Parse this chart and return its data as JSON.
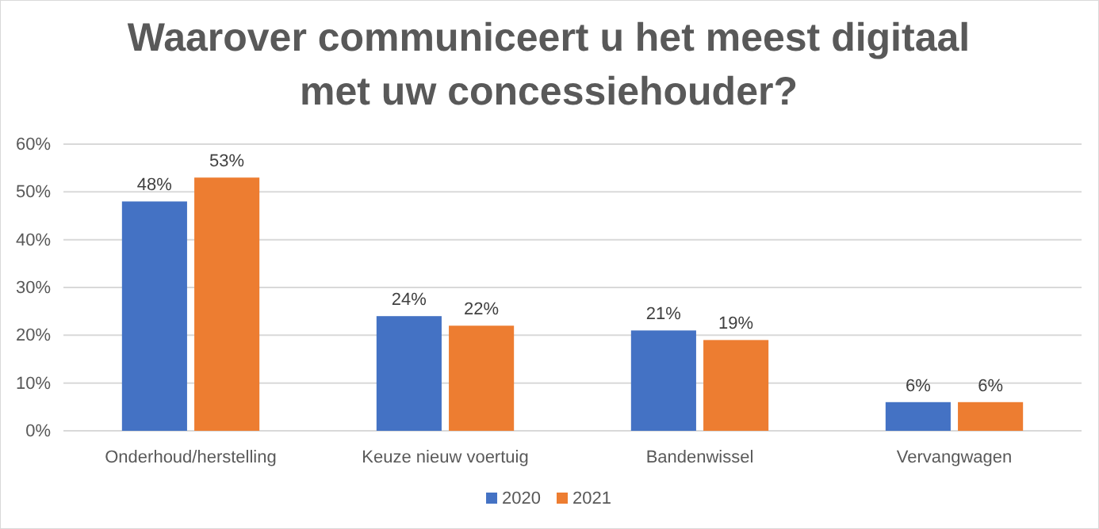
{
  "chart_data": {
    "type": "bar",
    "title": "Waarover communiceert u het meest digitaal met uw concessiehouder?",
    "categories": [
      "Onderhoud/herstelling",
      "Keuze nieuw voertuig",
      "Bandenwissel",
      "Vervangwagen"
    ],
    "series": [
      {
        "name": "2020",
        "color": "#4472c4",
        "values": [
          48,
          24,
          21,
          6
        ],
        "value_labels": [
          "48%",
          "24%",
          "21%",
          "6%"
        ]
      },
      {
        "name": "2021",
        "color": "#ed7d31",
        "values": [
          53,
          22,
          19,
          6
        ],
        "value_labels": [
          "53%",
          "22%",
          "19%",
          "6%"
        ]
      }
    ],
    "ylim": [
      0,
      60
    ],
    "yticks": [
      {
        "value": 0,
        "label": "0%"
      },
      {
        "value": 10,
        "label": "10%"
      },
      {
        "value": 20,
        "label": "20%"
      },
      {
        "value": 30,
        "label": "30%"
      },
      {
        "value": 40,
        "label": "40%"
      },
      {
        "value": 50,
        "label": "50%"
      },
      {
        "value": 60,
        "label": "60%"
      }
    ],
    "grid": "y",
    "legend": "bottom"
  }
}
